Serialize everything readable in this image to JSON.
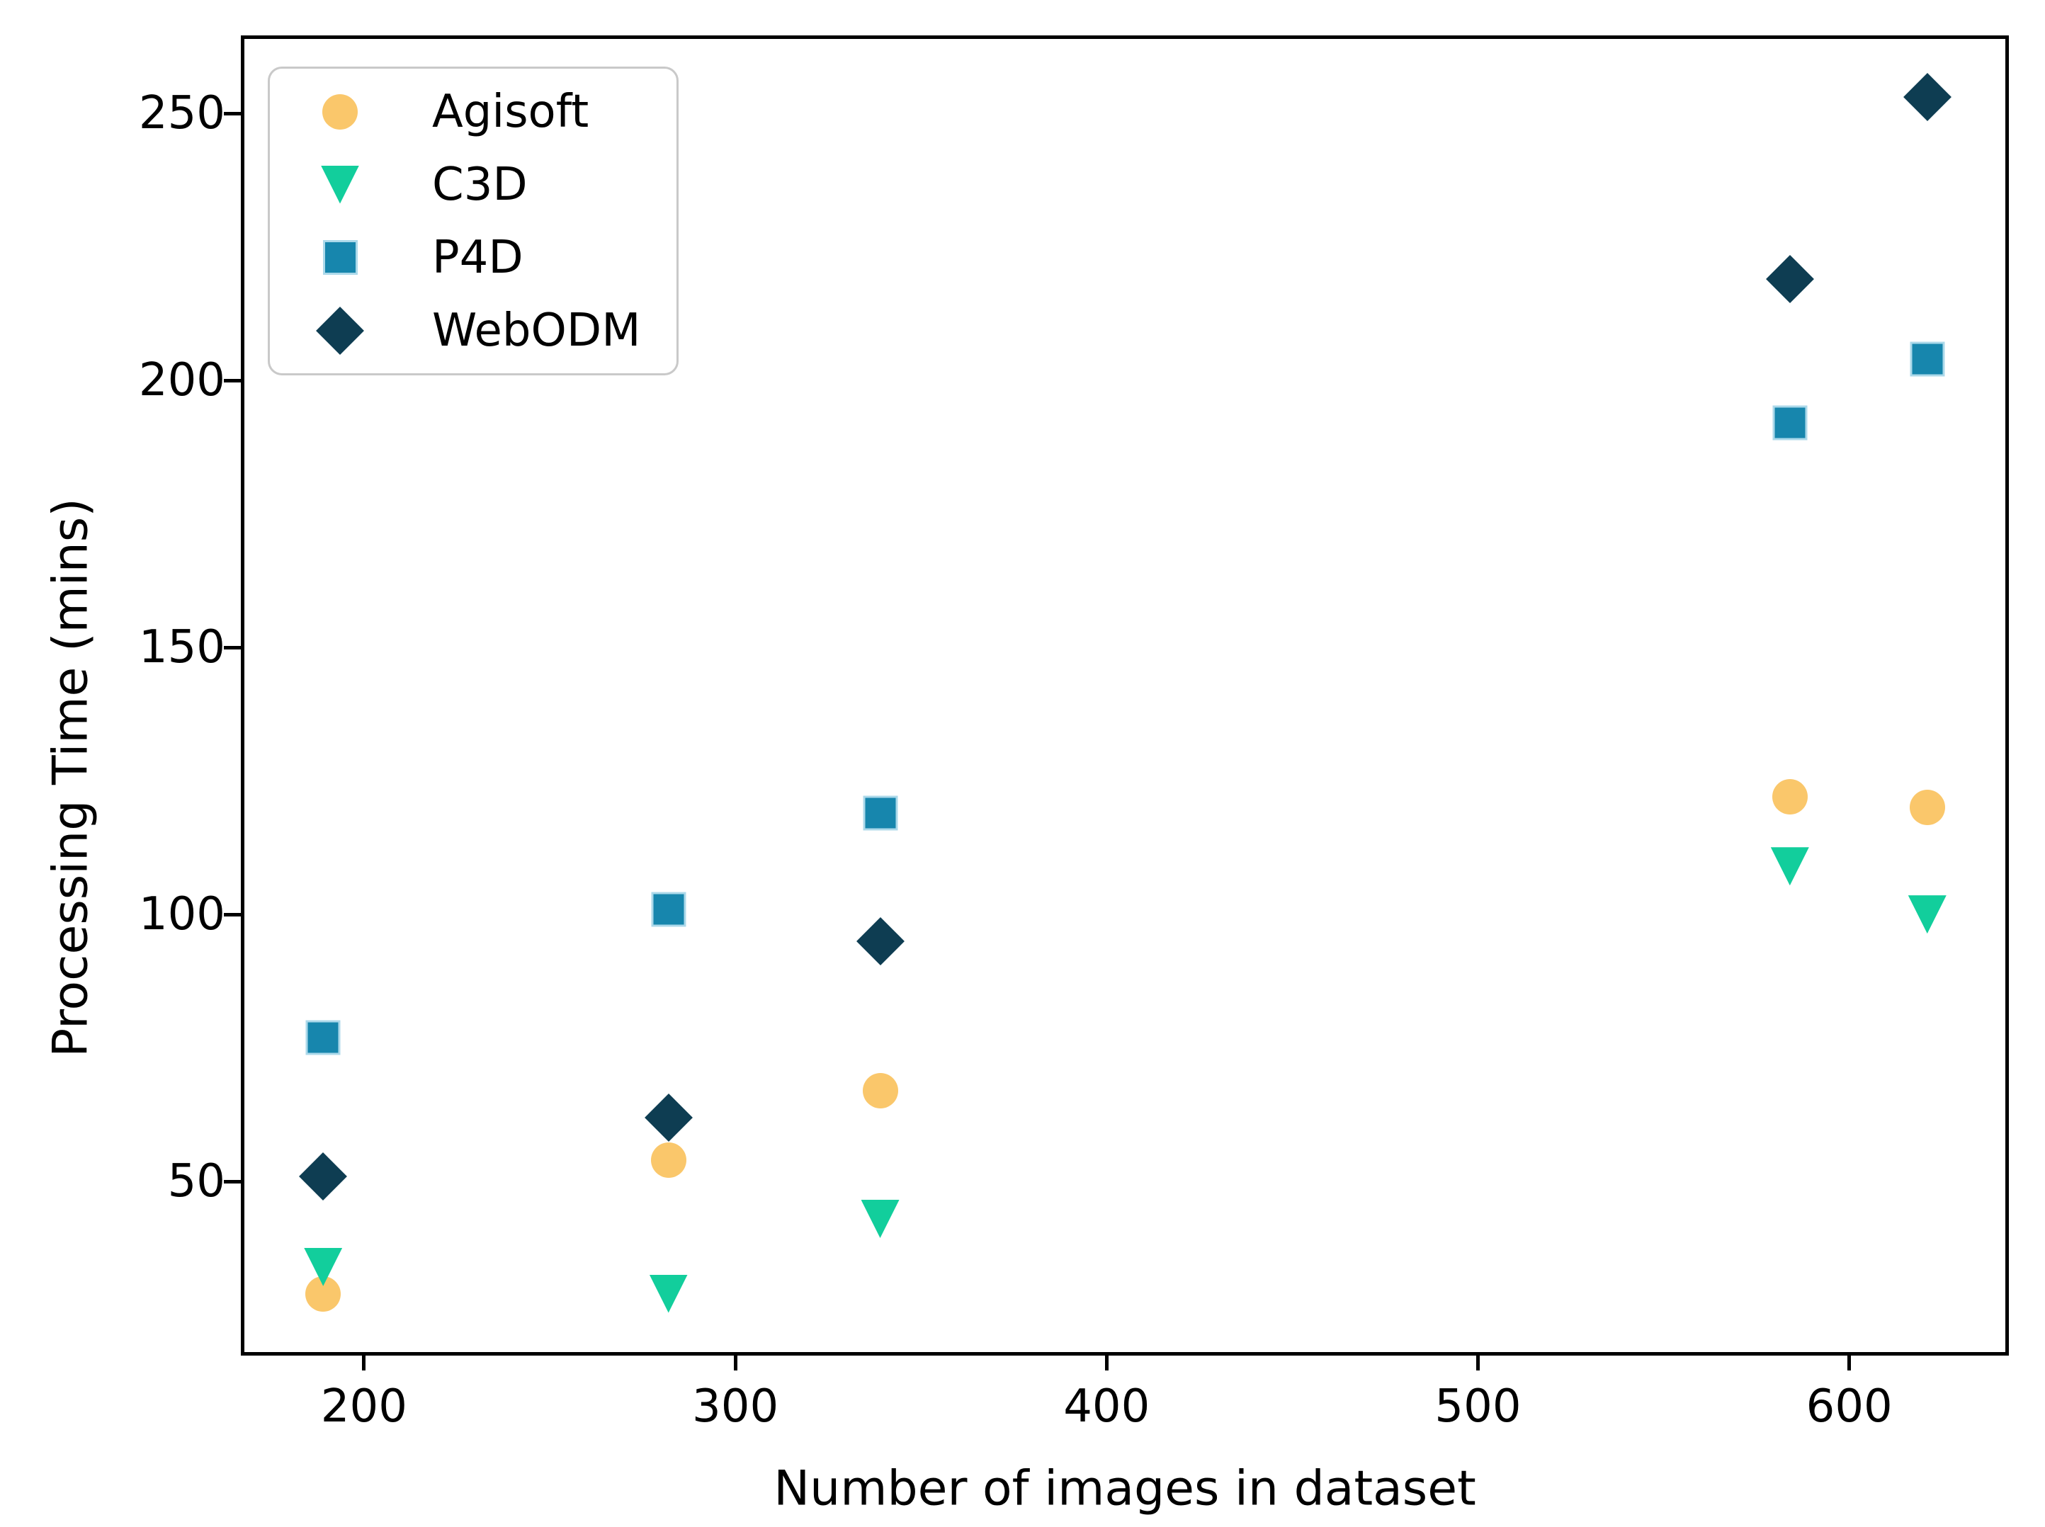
{
  "figure": {
    "xlabel": "Number of images in dataset",
    "ylabel": "Processing Time (mins)"
  },
  "legend": {
    "position": "upper left",
    "items": [
      {
        "label": "Agisoft",
        "marker": "circle"
      },
      {
        "label": "C3D",
        "marker": "triangle-down"
      },
      {
        "label": "P4D",
        "marker": "square"
      },
      {
        "label": "WebODM",
        "marker": "diamond"
      }
    ]
  },
  "chart_data": {
    "type": "scatter",
    "title": "",
    "xlabel": "Number of images in dataset",
    "ylabel": "Processing Time (mins)",
    "x": [
      189,
      282,
      339,
      584,
      621
    ],
    "series": [
      {
        "name": "Agisoft",
        "marker": "circle",
        "color": "#FAC76B",
        "values": [
          29,
          54,
          67,
          122,
          120
        ]
      },
      {
        "name": "C3D",
        "marker": "triangle-down",
        "color": "#12CE9C",
        "values": [
          34,
          29,
          43,
          109,
          100
        ]
      },
      {
        "name": "P4D",
        "marker": "square",
        "color": "#1786AD",
        "edge_color": "#ACD9EA",
        "values": [
          77,
          101,
          119,
          192,
          204
        ]
      },
      {
        "name": "WebODM",
        "marker": "diamond",
        "color": "#0E3D52",
        "values": [
          51,
          62,
          95,
          219,
          253
        ]
      }
    ],
    "xticks": [
      200,
      300,
      400,
      500,
      600
    ],
    "yticks": [
      50,
      100,
      150,
      200,
      250
    ],
    "xlim": [
      167.4,
      642.6
    ],
    "ylim": [
      17.8,
      264.2
    ],
    "grid": false,
    "legend_position": "upper left",
    "background": "#ffffff",
    "axis_color": "#000000"
  }
}
